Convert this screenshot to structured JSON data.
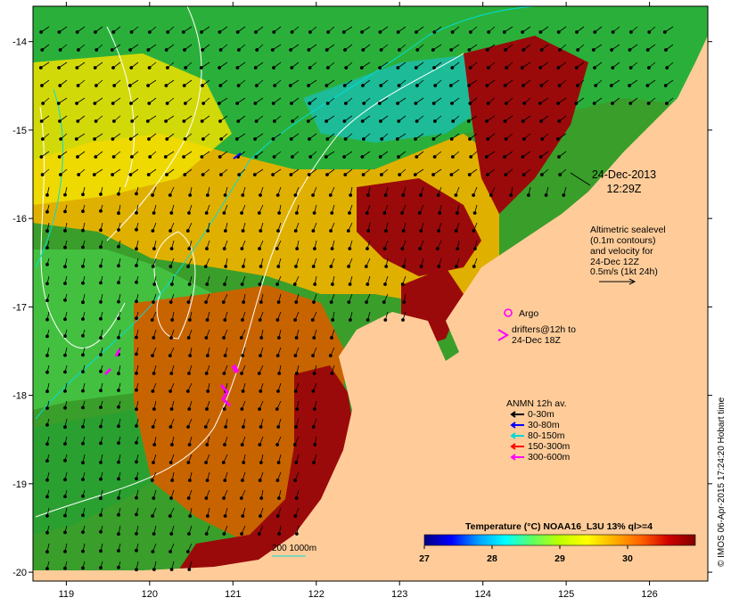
{
  "map": {
    "lon_ticks": [
      "119",
      "120",
      "121",
      "122",
      "123",
      "124",
      "125",
      "126"
    ],
    "lat_ticks": [
      "-14",
      "-15",
      "-16",
      "-17",
      "-18",
      "-19",
      "-20"
    ],
    "lon_range": [
      118.6,
      126.7
    ],
    "lat_range": [
      -20.1,
      -13.6
    ]
  },
  "annotations": {
    "date": "24-Dec-2013",
    "time": "12:29Z",
    "altimetry": [
      "Altimetric sealevel",
      "(0.1m contours)",
      "and velocity for",
      "24-Dec 12Z",
      "0.5m/s (1kt 24h)"
    ],
    "argo_label": "Argo",
    "drifters": [
      "drifters@12h to",
      "24-Dec 18Z"
    ],
    "anmn_title": "ANMN 12h av.",
    "anmn_items": [
      {
        "label": "0-30m",
        "color": "#000000"
      },
      {
        "label": "30-80m",
        "color": "#0000ff"
      },
      {
        "label": "80-150m",
        "color": "#00d8d8"
      },
      {
        "label": "150-300m",
        "color": "#ff0000"
      },
      {
        "label": "300-600m",
        "color": "#ff00ff"
      }
    ],
    "bathy_label": "200  1000m",
    "credit": "© IMOS 06-Apr-2015 17:24:20 Hobart time"
  },
  "colorbar": {
    "title": "Temperature (°C) NOAA16_L3U 13% ql>=4",
    "ticks": [
      "27",
      "28",
      "29",
      "30"
    ],
    "range": [
      27,
      31
    ],
    "stops": [
      "#000080",
      "#0000ff",
      "#00a0ff",
      "#00ffff",
      "#60ff60",
      "#c0ff00",
      "#ffff00",
      "#ffb000",
      "#ff6000",
      "#d00000",
      "#800000"
    ]
  },
  "colors": {
    "land": "#ffcc99",
    "argo": "#ff00ff",
    "cold": "#1aa51a",
    "warm": "#c85a00",
    "hot": "#9a0a0a",
    "mid": "#e6b800"
  }
}
